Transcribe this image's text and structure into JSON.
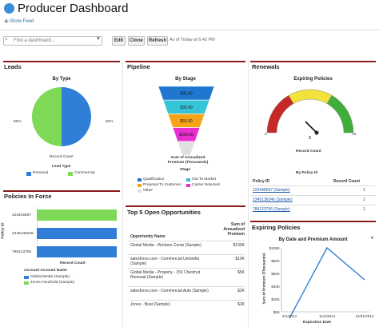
{
  "header": {
    "title": "Producer Dashboard",
    "show_feed": "Show Feed"
  },
  "toolbar": {
    "search_placeholder": "Find a dashboard...",
    "edit": "Edit",
    "clone": "Clone",
    "refresh": "Refresh",
    "as_of": "As of Today at 6:42 PM"
  },
  "leads": {
    "section": "Leads",
    "chart_title": "By Type",
    "record_count": "Record Count",
    "left_pct": "50%",
    "right_pct": "50%",
    "legend_title": "Lead Type",
    "legend": [
      "Personal",
      "Commercial"
    ],
    "colors": [
      "#2f7fd8",
      "#7ed957"
    ]
  },
  "pipeline": {
    "section": "Pipeline",
    "chart_title": "By Stage",
    "value_label": "Sum of Annualized Premium (Thousands)",
    "stage_label": "Stage",
    "legend": [
      "Qualification",
      "Out To Market",
      "Proposal To Customer",
      "Carrier Selected",
      "Other"
    ],
    "colors": [
      "#1f77d0",
      "#35c4d8",
      "#f7a318",
      "#e92fd2",
      "#e0e0e0"
    ]
  },
  "renewals": {
    "section": "Renewals",
    "chart_title": "Expiring Policies",
    "gauge_min": "0",
    "gauge_max": "15",
    "gauge_value": "3",
    "gauge_label": "Record Count",
    "table_title": "By Policy Id",
    "col_policy": "Policy ID",
    "col_count": "Record Count",
    "rows": [
      {
        "id": "223445667 (Sample)",
        "count": "1"
      },
      {
        "id": "2345136346 (Sample)",
        "count": "1"
      },
      {
        "id": "789123756 (Sample)",
        "count": "1"
      }
    ]
  },
  "policies": {
    "section": "Policies In Force",
    "ylabel": "Policy ID",
    "xlabel": "Record Count",
    "legend_header": "Account  Account Name",
    "legend": [
      "Global Media (Sample)",
      "Jones Houshold (Sample)"
    ],
    "colors": [
      "#2f7fd8",
      "#7ed957"
    ]
  },
  "opportunities": {
    "section": "Top 5 Open Opportunities",
    "col_name": "Opportunity Name",
    "col_sum": "Sum of Annualized Premium",
    "rows": [
      {
        "name": "Global Media - Workers Comp (Sample)",
        "value": "$100K"
      },
      {
        "name": "salesforce.com - Commercial Umbrella (Sample)",
        "value": "$10K"
      },
      {
        "name": "Global Media - Property - 150 Chestnut Renewal (Sample)",
        "value": "$5K"
      },
      {
        "name": "salesforce.com - Commercial Auto (Sample)",
        "value": "$2K"
      },
      {
        "name": "Jones - Boat (Sample)",
        "value": "$2K"
      }
    ]
  },
  "expiring": {
    "section": "Expiring Policies",
    "chart_title": "By Date and Premium Amount",
    "ylabel": "Sum of Premium (Thousands)",
    "xlabel": "Expiration Date"
  },
  "chart_data": [
    {
      "type": "pie",
      "title": "By Type",
      "categories": [
        "Personal",
        "Commercial"
      ],
      "values": [
        50,
        50
      ],
      "labels": [
        "50%",
        "50%"
      ]
    },
    {
      "type": "bar",
      "title": "By Stage",
      "categories": [
        "Qualification",
        "Out To Market",
        "Proposal To Customer",
        "Carrier Selected",
        "Other"
      ],
      "values": [
        35,
        30,
        50,
        100,
        20
      ],
      "labels": [
        "$35.00",
        "$30.00",
        "$50.00",
        "$100.00",
        "$20.00"
      ]
    },
    {
      "type": "bar",
      "title": "Policies In Force",
      "xlabel": "Record Count",
      "ylabel": "Policy ID",
      "categories": [
        "223445667",
        "2345136346",
        "789123756"
      ],
      "series": [
        {
          "name": "Jones Houshold (Sample)",
          "values": [
            1,
            0,
            0
          ]
        },
        {
          "name": "Global Media (Sample)",
          "values": [
            0,
            1,
            1
          ]
        }
      ],
      "xlim": [
        0,
        1
      ]
    },
    {
      "type": "line",
      "title": "By Date and Premium Amount",
      "xlabel": "Expiration Date",
      "ylabel": "Sum of Premium (Thousands)",
      "x": [
        "5/1/2014",
        "11/1/2014",
        "12/31/2014"
      ],
      "y": [
        0,
        100,
        50
      ],
      "yticks": [
        "$0K",
        "$20K",
        "$40K",
        "$60K",
        "$80K",
        "$100K"
      ],
      "ylim": [
        0,
        100
      ]
    }
  ]
}
